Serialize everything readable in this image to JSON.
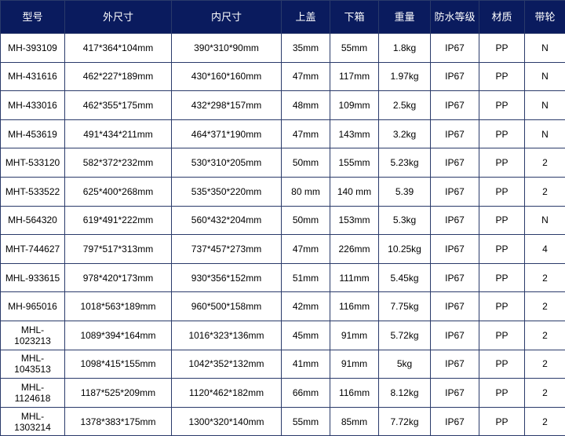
{
  "table": {
    "header": [
      "型号",
      "外尺寸",
      "内尺寸",
      "上盖",
      "下箱",
      "重量",
      "防水等级",
      "材质",
      "带轮"
    ],
    "rows": [
      [
        "MH-393109",
        "417*364*104mm",
        "390*310*90mm",
        "35mm",
        "55mm",
        "1.8kg",
        "IP67",
        "PP",
        "N"
      ],
      [
        "MH-431616",
        "462*227*189mm",
        "430*160*160mm",
        "47mm",
        "117mm",
        "1.97kg",
        "IP67",
        "PP",
        "N"
      ],
      [
        "MH-433016",
        "462*355*175mm",
        "432*298*157mm",
        "48mm",
        "109mm",
        "2.5kg",
        "IP67",
        "PP",
        "N"
      ],
      [
        "MH-453619",
        "491*434*211mm",
        "464*371*190mm",
        "47mm",
        "143mm",
        "3.2kg",
        "IP67",
        "PP",
        "N"
      ],
      [
        "MHT-533120",
        "582*372*232mm",
        "530*310*205mm",
        "50mm",
        "155mm",
        "5.23kg",
        "IP67",
        "PP",
        "2"
      ],
      [
        "MHT-533522",
        "625*400*268mm",
        "535*350*220mm",
        "80 mm",
        "140 mm",
        "5.39",
        "IP67",
        "PP",
        "2"
      ],
      [
        "MH-564320",
        "619*491*222mm",
        "560*432*204mm",
        "50mm",
        "153mm",
        "5.3kg",
        "IP67",
        "PP",
        "N"
      ],
      [
        "MHT-744627",
        "797*517*313mm",
        "737*457*273mm",
        "47mm",
        "226mm",
        "10.25kg",
        "IP67",
        "PP",
        "4"
      ],
      [
        "MHL-933615",
        "978*420*173mm",
        "930*356*152mm",
        "51mm",
        "111mm",
        "5.45kg",
        "IP67",
        "PP",
        "2"
      ],
      [
        "MH-965016",
        "1018*563*189mm",
        "960*500*158mm",
        "42mm",
        "116mm",
        "7.75kg",
        "IP67",
        "PP",
        "2"
      ],
      [
        "MHL-1023213",
        "1089*394*164mm",
        "1016*323*136mm",
        "45mm",
        "91mm",
        "5.72kg",
        "IP67",
        "PP",
        "2"
      ],
      [
        "MHL-1043513",
        "1098*415*155mm",
        "1042*352*132mm",
        "41mm",
        "91mm",
        "5kg",
        "IP67",
        "PP",
        "2"
      ],
      [
        "MHL-1124618",
        "1187*525*209mm",
        "1120*462*182mm",
        "66mm",
        "116mm",
        "8.12kg",
        "IP67",
        "PP",
        "2"
      ],
      [
        "MHL-1303214",
        "1378*383*175mm",
        "1300*320*140mm",
        "55mm",
        "85mm",
        "7.72kg",
        "IP67",
        "PP",
        "2"
      ]
    ]
  }
}
